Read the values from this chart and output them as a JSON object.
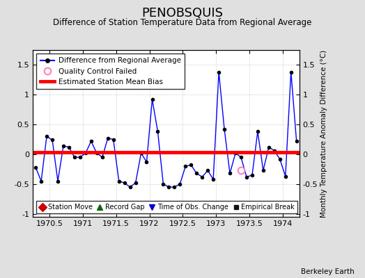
{
  "title": "PENOBSQUIS",
  "subtitle": "Difference of Station Temperature Data from Regional Average",
  "ylabel_right": "Monthly Temperature Anomaly Difference (°C)",
  "credit": "Berkeley Earth",
  "xlim": [
    1970.25,
    1974.25
  ],
  "ylim": [
    -1.05,
    1.75
  ],
  "yticks": [
    -1.0,
    -0.5,
    0.0,
    0.5,
    1.0,
    1.5
  ],
  "ytick_labels": [
    "-1",
    "-0.5",
    "0",
    "0.5",
    "1",
    "1.5"
  ],
  "xticks": [
    1970.5,
    1971.0,
    1971.5,
    1972.0,
    1972.5,
    1973.0,
    1973.5,
    1974.0
  ],
  "xtick_labels": [
    "1970.5",
    "1971",
    "1971.5",
    "1972",
    "1972.5",
    "1973",
    "1973.5",
    "1974"
  ],
  "bias_value": 0.04,
  "line_color": "#0000FF",
  "bias_color": "#FF0000",
  "dot_color": "#000000",
  "background_color": "#E0E0E0",
  "plot_bg_color": "#FFFFFF",
  "qc_fail_color": "#FF80C0",
  "times": [
    1970.292,
    1970.375,
    1970.458,
    1970.542,
    1970.625,
    1970.708,
    1970.792,
    1970.875,
    1970.958,
    1971.042,
    1971.125,
    1971.208,
    1971.292,
    1971.375,
    1971.458,
    1971.542,
    1971.625,
    1971.708,
    1971.792,
    1971.875,
    1971.958,
    1972.042,
    1972.125,
    1972.208,
    1972.292,
    1972.375,
    1972.458,
    1972.542,
    1972.625,
    1972.708,
    1972.792,
    1972.875,
    1972.958,
    1973.042,
    1973.125,
    1973.208,
    1973.292,
    1973.375,
    1973.458,
    1973.542,
    1973.625,
    1973.708,
    1973.792,
    1973.875,
    1973.958,
    1974.042,
    1974.125,
    1974.208
  ],
  "values": [
    -0.22,
    -0.45,
    0.3,
    0.24,
    -0.45,
    0.14,
    0.12,
    -0.05,
    -0.05,
    0.02,
    0.22,
    0.02,
    -0.05,
    0.27,
    0.25,
    -0.45,
    -0.48,
    -0.55,
    -0.48,
    0.02,
    -0.13,
    0.92,
    0.38,
    -0.5,
    -0.55,
    -0.55,
    -0.5,
    -0.2,
    -0.18,
    -0.32,
    -0.38,
    -0.27,
    -0.42,
    1.38,
    0.42,
    -0.32,
    0.02,
    -0.05,
    -0.38,
    -0.35,
    0.38,
    -0.27,
    0.12,
    0.06,
    -0.08,
    -0.37,
    1.38,
    0.22
  ],
  "qc_fail_times": [
    1973.375
  ],
  "qc_fail_values": [
    -0.27
  ]
}
